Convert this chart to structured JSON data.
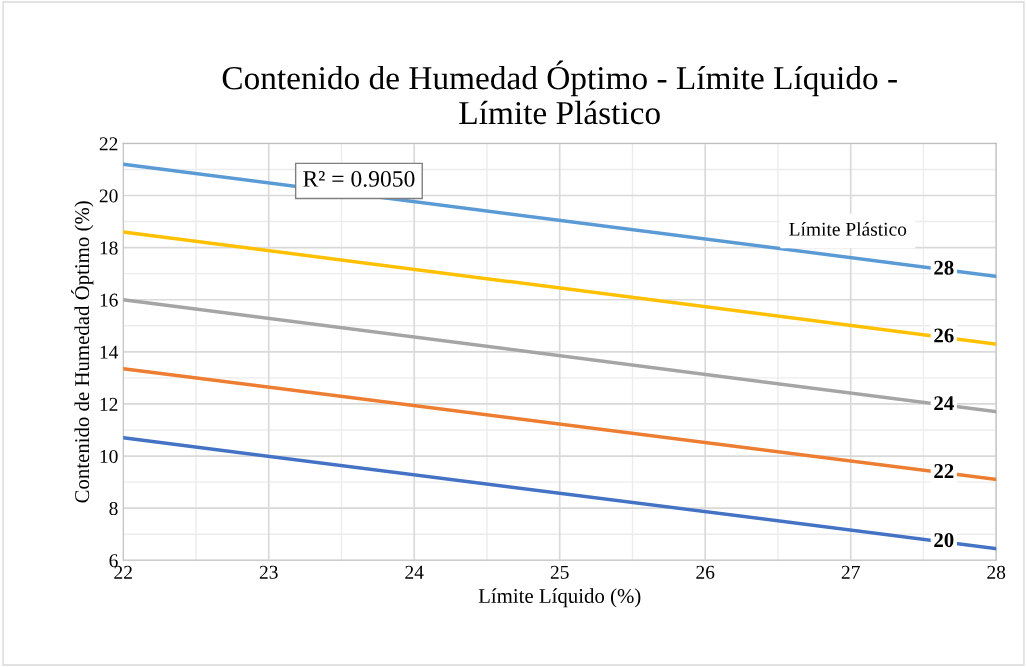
{
  "chart_data": {
    "type": "line",
    "title": "Contenido de Humedad Óptimo - Límite Líquido -\nLímite Plástico",
    "xlabel": "Límite Líquido (%)",
    "ylabel": "Contenido de Humedad Óptimo (%)",
    "annotations": [
      "R² = 0.9050",
      "Límite Plástico"
    ],
    "x": [
      22,
      28
    ],
    "xlim": [
      22,
      28
    ],
    "xticks": [
      22,
      23,
      24,
      25,
      26,
      27,
      28
    ],
    "ylim": [
      6,
      22
    ],
    "yticks": [
      6,
      8,
      10,
      12,
      14,
      16,
      18,
      20,
      22
    ],
    "grid": true,
    "legend": false,
    "marker": "none",
    "line_style": "solid",
    "series": [
      {
        "name": "28",
        "color": "#5b9bd5",
        "values": [
          21.2,
          16.9
        ]
      },
      {
        "name": "26",
        "color": "#ffc000",
        "values": [
          18.6,
          14.3
        ]
      },
      {
        "name": "24",
        "color": "#a5a5a5",
        "values": [
          16.0,
          11.7
        ]
      },
      {
        "name": "22",
        "color": "#ed7d31",
        "values": [
          13.35,
          9.1
        ]
      },
      {
        "name": "20",
        "color": "#4472c4",
        "values": [
          10.7,
          6.45
        ]
      }
    ]
  }
}
